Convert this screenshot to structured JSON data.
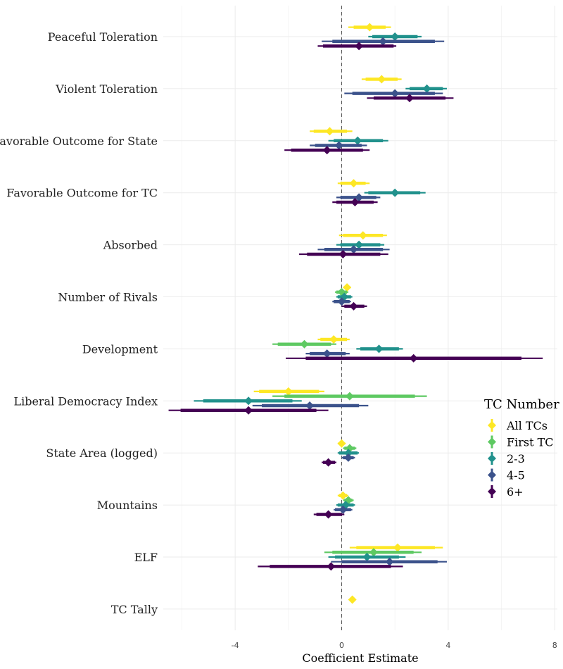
{
  "chart_data": {
    "type": "coefficient-plot",
    "xlabel": "Coefficient Estimate",
    "xlim": [
      -6.7,
      8.1
    ],
    "xticks": [
      -4,
      0,
      4,
      8
    ],
    "xtick_labels": [
      "-4",
      "0",
      "4",
      "8"
    ],
    "reference_line": 0,
    "grid": true,
    "legend": {
      "title": "TC Number",
      "position": "right",
      "entries": [
        "All TCs",
        "First TC",
        "2-3",
        "4-5",
        "6+"
      ]
    },
    "series": [
      {
        "name": "All TCs",
        "color": "#fde725"
      },
      {
        "name": "First TC",
        "color": "#5ec962"
      },
      {
        "name": "2-3",
        "color": "#21918c"
      },
      {
        "name": "4-5",
        "color": "#3b528b"
      },
      {
        "name": "6+",
        "color": "#440154"
      }
    ],
    "variables": [
      {
        "label": "Peaceful Toleration",
        "points": [
          {
            "series": "All TCs",
            "est": 1.05,
            "lo95": 0.25,
            "hi95": 1.85,
            "lo90": 0.45,
            "hi90": 1.65
          },
          {
            "series": "First TC",
            "est": null
          },
          {
            "series": "2-3",
            "est": 2.0,
            "lo95": 1.0,
            "hi95": 3.0,
            "lo90": 1.15,
            "hi90": 2.85
          },
          {
            "series": "4-5",
            "est": 1.55,
            "lo95": -0.75,
            "hi95": 3.85,
            "lo90": -0.35,
            "hi90": 3.5
          },
          {
            "series": "6+",
            "est": 0.65,
            "lo95": -0.9,
            "hi95": 2.05,
            "lo90": -0.7,
            "hi90": 1.95
          }
        ]
      },
      {
        "label": "Violent Toleration",
        "points": [
          {
            "series": "All TCs",
            "est": 1.5,
            "lo95": 0.75,
            "hi95": 2.25,
            "lo90": 0.9,
            "hi90": 2.1
          },
          {
            "series": "First TC",
            "est": null
          },
          {
            "series": "2-3",
            "est": 3.2,
            "lo95": 2.4,
            "hi95": 3.95,
            "lo90": 2.55,
            "hi90": 3.8
          },
          {
            "series": "4-5",
            "est": 2.0,
            "lo95": 0.1,
            "hi95": 3.8,
            "lo90": 0.4,
            "hi90": 3.5
          },
          {
            "series": "6+",
            "est": 2.55,
            "lo95": 0.95,
            "hi95": 4.2,
            "lo90": 1.2,
            "hi90": 3.9
          }
        ]
      },
      {
        "label": "Favorable Outcome for State",
        "points": [
          {
            "series": "All TCs",
            "est": -0.45,
            "lo95": -1.2,
            "hi95": 0.4,
            "lo90": -1.05,
            "hi90": 0.2
          },
          {
            "series": "First TC",
            "est": null
          },
          {
            "series": "2-3",
            "est": 0.6,
            "lo95": -0.5,
            "hi95": 1.75,
            "lo90": -0.3,
            "hi90": 1.55
          },
          {
            "series": "4-5",
            "est": -0.1,
            "lo95": -1.2,
            "hi95": 0.95,
            "lo90": -1.0,
            "hi90": 0.75
          },
          {
            "series": "6+",
            "est": -0.55,
            "lo95": -2.15,
            "hi95": 1.05,
            "lo90": -1.9,
            "hi90": 0.8
          }
        ]
      },
      {
        "label": "Favorable Outcome for TC",
        "points": [
          {
            "series": "All TCs",
            "est": 0.45,
            "lo95": -0.15,
            "hi95": 1.05,
            "lo90": -0.05,
            "hi90": 0.9
          },
          {
            "series": "First TC",
            "est": null
          },
          {
            "series": "2-3",
            "est": 2.0,
            "lo95": 0.85,
            "hi95": 3.15,
            "lo90": 1.0,
            "hi90": 2.95
          },
          {
            "series": "4-5",
            "est": 0.65,
            "lo95": -0.2,
            "hi95": 1.45,
            "lo90": -0.05,
            "hi90": 1.3
          },
          {
            "series": "6+",
            "est": 0.5,
            "lo95": -0.35,
            "hi95": 1.35,
            "lo90": -0.2,
            "hi90": 1.2
          }
        ]
      },
      {
        "label": "Absorbed",
        "points": [
          {
            "series": "All TCs",
            "est": 0.8,
            "lo95": -0.1,
            "hi95": 1.7,
            "lo90": 0.05,
            "hi90": 1.55
          },
          {
            "series": "First TC",
            "est": null
          },
          {
            "series": "2-3",
            "est": 0.65,
            "lo95": -0.2,
            "hi95": 1.6,
            "lo90": -0.05,
            "hi90": 1.45
          },
          {
            "series": "4-5",
            "est": 0.45,
            "lo95": -0.9,
            "hi95": 1.8,
            "lo90": -0.65,
            "hi90": 1.55
          },
          {
            "series": "6+",
            "est": 0.05,
            "lo95": -1.6,
            "hi95": 1.75,
            "lo90": -1.3,
            "hi90": 1.45
          }
        ]
      },
      {
        "label": "Number of Rivals",
        "points": [
          {
            "series": "All TCs",
            "est": 0.2,
            "lo95": 0.05,
            "hi95": 0.35,
            "lo90": 0.1,
            "hi90": 0.3
          },
          {
            "series": "First TC",
            "est": 0.0,
            "lo95": -0.25,
            "hi95": 0.25,
            "lo90": -0.2,
            "hi90": 0.2
          },
          {
            "series": "2-3",
            "est": 0.1,
            "lo95": -0.2,
            "hi95": 0.4,
            "lo90": -0.15,
            "hi90": 0.35
          },
          {
            "series": "4-5",
            "est": 0.0,
            "lo95": -0.35,
            "hi95": 0.35,
            "lo90": -0.3,
            "hi90": 0.3
          },
          {
            "series": "6+",
            "est": 0.45,
            "lo95": 0.0,
            "hi95": 0.95,
            "lo90": 0.1,
            "hi90": 0.85
          }
        ]
      },
      {
        "label": "Development",
        "points": [
          {
            "series": "All TCs",
            "est": -0.3,
            "lo95": -0.9,
            "hi95": 0.3,
            "lo90": -0.8,
            "hi90": 0.2
          },
          {
            "series": "First TC",
            "est": -1.4,
            "lo95": -2.6,
            "hi95": -0.2,
            "lo90": -2.4,
            "hi90": -0.4
          },
          {
            "series": "2-3",
            "est": 1.4,
            "lo95": 0.55,
            "hi95": 2.3,
            "lo90": 0.7,
            "hi90": 2.15
          },
          {
            "series": "4-5",
            "est": -0.55,
            "lo95": -1.35,
            "hi95": 0.3,
            "lo90": -1.2,
            "hi90": 0.15
          },
          {
            "series": "6+",
            "est": 2.7,
            "lo95": -2.1,
            "hi95": 7.55,
            "lo90": -1.35,
            "hi90": 6.75
          }
        ]
      },
      {
        "label": "Liberal Democracy Index",
        "points": [
          {
            "series": "All TCs",
            "est": -2.0,
            "lo95": -3.3,
            "hi95": -0.65,
            "lo90": -3.1,
            "hi90": -0.85
          },
          {
            "series": "First TC",
            "est": 0.3,
            "lo95": -2.6,
            "hi95": 3.2,
            "lo90": -2.15,
            "hi90": 2.75
          },
          {
            "series": "2-3",
            "est": -3.5,
            "lo95": -5.55,
            "hi95": -1.5,
            "lo90": -5.2,
            "hi90": -1.85
          },
          {
            "series": "4-5",
            "est": -1.2,
            "lo95": -3.35,
            "hi95": 1.0,
            "lo90": -3.0,
            "hi90": 0.65
          },
          {
            "series": "6+",
            "est": -3.5,
            "lo95": -6.5,
            "hi95": -0.5,
            "lo90": -6.05,
            "hi90": -0.95
          }
        ]
      },
      {
        "label": "State Area (logged)",
        "points": [
          {
            "series": "All TCs",
            "est": 0.0,
            "lo95": -0.15,
            "hi95": 0.15,
            "lo90": -0.1,
            "hi90": 0.1
          },
          {
            "series": "First TC",
            "est": 0.3,
            "lo95": 0.05,
            "hi95": 0.55,
            "lo90": 0.1,
            "hi90": 0.5
          },
          {
            "series": "2-3",
            "est": 0.25,
            "lo95": -0.15,
            "hi95": 0.65,
            "lo90": -0.1,
            "hi90": 0.6
          },
          {
            "series": "4-5",
            "est": 0.25,
            "lo95": 0.0,
            "hi95": 0.5,
            "lo90": 0.05,
            "hi90": 0.45
          },
          {
            "series": "6+",
            "est": -0.5,
            "lo95": -0.75,
            "hi95": -0.2,
            "lo90": -0.7,
            "hi90": -0.25
          }
        ]
      },
      {
        "label": "Mountains",
        "points": [
          {
            "series": "All TCs",
            "est": 0.05,
            "lo95": -0.15,
            "hi95": 0.25,
            "lo90": -0.1,
            "hi90": 0.2
          },
          {
            "series": "First TC",
            "est": 0.25,
            "lo95": 0.05,
            "hi95": 0.45,
            "lo90": 0.1,
            "hi90": 0.4
          },
          {
            "series": "2-3",
            "est": 0.15,
            "lo95": -0.2,
            "hi95": 0.5,
            "lo90": -0.15,
            "hi90": 0.45
          },
          {
            "series": "4-5",
            "est": 0.05,
            "lo95": -0.3,
            "hi95": 0.4,
            "lo90": -0.25,
            "hi90": 0.35
          },
          {
            "series": "6+",
            "est": -0.5,
            "lo95": -1.05,
            "hi95": 0.1,
            "lo90": -0.95,
            "hi90": 0.0
          }
        ]
      },
      {
        "label": "ELF",
        "points": [
          {
            "series": "All TCs",
            "est": 2.1,
            "lo95": 0.3,
            "hi95": 3.8,
            "lo90": 0.55,
            "hi90": 3.5
          },
          {
            "series": "First TC",
            "est": 1.2,
            "lo95": -0.65,
            "hi95": 3.0,
            "lo90": -0.35,
            "hi90": 2.7
          },
          {
            "series": "2-3",
            "est": 0.95,
            "lo95": -0.5,
            "hi95": 2.4,
            "lo90": -0.25,
            "hi90": 2.15
          },
          {
            "series": "4-5",
            "est": 1.8,
            "lo95": -0.4,
            "hi95": 3.95,
            "lo90": 0.0,
            "hi90": 3.6
          },
          {
            "series": "6+",
            "est": -0.4,
            "lo95": -3.15,
            "hi95": 2.3,
            "lo90": -2.7,
            "hi90": 1.85
          }
        ]
      },
      {
        "label": "TC Tally",
        "points": [
          {
            "series": "All TCs",
            "est": 0.4,
            "lo95": 0.35,
            "hi95": 0.45,
            "lo90": 0.37,
            "hi90": 0.43
          },
          {
            "series": "First TC",
            "est": null
          },
          {
            "series": "2-3",
            "est": null
          },
          {
            "series": "4-5",
            "est": null
          },
          {
            "series": "6+",
            "est": null
          }
        ]
      }
    ]
  }
}
